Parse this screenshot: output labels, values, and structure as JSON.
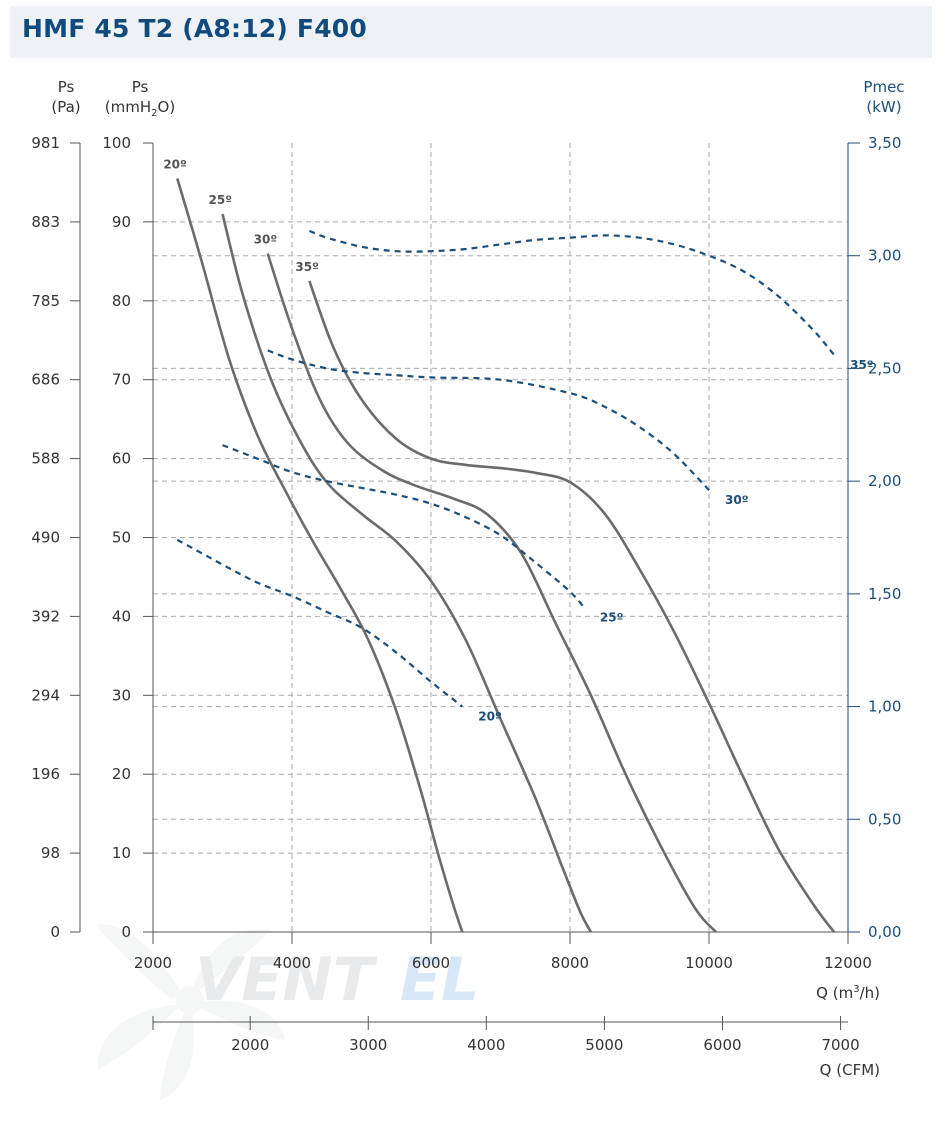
{
  "title": "HMF 45 T2 (A8:12) F400",
  "colors": {
    "pressure_curve": "#6b6b6b",
    "power_curve": "#1c4e7a",
    "grid": "#aaaaaa",
    "title": "#114a7d",
    "title_bg": "#eef2f6"
  },
  "watermark": {
    "text_part1": "VENT",
    "text_part2": "EL",
    "icon": "fan-blade-icon"
  },
  "axes": {
    "left_pa": {
      "label_line1": "Ps",
      "label_line2": "(Pa)",
      "ticks": [
        "981",
        "883",
        "785",
        "686",
        "588",
        "490",
        "392",
        "294",
        "196",
        "98",
        "0"
      ]
    },
    "left_mmh2o": {
      "label_line1": "Ps",
      "label_pre": "(mmH",
      "label_sub": "2",
      "label_post": "O)",
      "ticks": [
        "100",
        "90",
        "80",
        "70",
        "60",
        "50",
        "40",
        "30",
        "20",
        "10",
        "0"
      ]
    },
    "right_kw": {
      "label_line1": "Pmec",
      "label_line2": "(kW)",
      "ticks": [
        "3,50",
        "3,00",
        "2,50",
        "2,00",
        "1,50",
        "1,00",
        "0,50",
        "0,00"
      ]
    },
    "bottom_m3h": {
      "label_pre": "Q (m",
      "label_sup": "3",
      "label_post": "/h)",
      "ticks": [
        "2000",
        "4000",
        "6000",
        "8000",
        "10000",
        "12000"
      ]
    },
    "bottom_cfm": {
      "label": "Q (CFM)",
      "ticks": [
        "2000",
        "3000",
        "4000",
        "5000",
        "6000",
        "7000"
      ]
    }
  },
  "chart_data": {
    "type": "line",
    "title": "HMF 45 T2 (A8:12) F400",
    "xlabel": "Q (m3/h)",
    "xlabel_secondary": "Q (CFM)",
    "ylabel": "Ps (mmH2O)",
    "ylabel_secondary": "Ps (Pa)",
    "y2label": "Pmec (kW)",
    "xlim": [
      2000,
      12000
    ],
    "ylim": [
      0,
      100
    ],
    "y2lim": [
      0,
      3.5
    ],
    "grid": true,
    "series": [
      {
        "name": "20º",
        "kind": "pressure",
        "label": "20º",
        "x": [
          2350,
          2700,
          3100,
          3500,
          3900,
          4300,
          4700,
          5100,
          5500,
          5850,
          6100,
          6300,
          6450
        ],
        "y": [
          95.5,
          85,
          72.5,
          63,
          56,
          49.5,
          43.5,
          37,
          28,
          18,
          10,
          4,
          0
        ]
      },
      {
        "name": "25º",
        "kind": "pressure",
        "label": "25º",
        "x": [
          3000,
          3300,
          3700,
          4100,
          4500,
          5000,
          5500,
          6000,
          6500,
          7000,
          7500,
          7900,
          8150,
          8300
        ],
        "y": [
          91,
          80.5,
          70,
          62.5,
          57,
          53,
          49.5,
          44.5,
          37,
          27,
          17,
          8,
          2.5,
          0
        ]
      },
      {
        "name": "30º",
        "kind": "pressure",
        "label": "30º",
        "x": [
          3650,
          4000,
          4400,
          4800,
          5300,
          5800,
          6300,
          6800,
          7300,
          7800,
          8300,
          8800,
          9300,
          9800,
          10100
        ],
        "y": [
          86,
          76.5,
          67.5,
          62,
          58.5,
          56.5,
          55,
          53,
          48,
          39,
          30,
          20,
          11,
          3,
          0
        ]
      },
      {
        "name": "35º",
        "kind": "pressure",
        "label": "35º",
        "x": [
          4250,
          4600,
          5000,
          5500,
          6000,
          6500,
          7000,
          7500,
          8000,
          8500,
          9000,
          9500,
          10000,
          10500,
          11000,
          11500,
          11800
        ],
        "y": [
          82.5,
          74,
          67.5,
          62.5,
          60,
          59.2,
          58.8,
          58.2,
          57,
          53,
          46,
          38,
          29,
          19.5,
          10.5,
          3.5,
          0
        ]
      },
      {
        "name": "20º",
        "kind": "power",
        "label": "20º",
        "x": [
          2350,
          3000,
          3500,
          4000,
          4500,
          5000,
          5500,
          6000,
          6450
        ],
        "y": [
          1.74,
          1.63,
          1.55,
          1.49,
          1.42,
          1.35,
          1.24,
          1.11,
          1.0
        ]
      },
      {
        "name": "25º",
        "kind": "power",
        "label": "25º",
        "x": [
          3000,
          3500,
          4000,
          4500,
          5000,
          5500,
          6000,
          6500,
          7000,
          7500,
          8000,
          8200
        ],
        "y": [
          2.16,
          2.1,
          2.04,
          2.0,
          1.97,
          1.94,
          1.9,
          1.84,
          1.76,
          1.64,
          1.51,
          1.44
        ]
      },
      {
        "name": "30º",
        "kind": "power",
        "label": "30º",
        "x": [
          3650,
          4000,
          4500,
          5000,
          5500,
          6000,
          7000,
          8000,
          8500,
          9000,
          9500,
          10000
        ],
        "y": [
          2.58,
          2.54,
          2.5,
          2.48,
          2.47,
          2.46,
          2.45,
          2.39,
          2.33,
          2.24,
          2.12,
          1.96
        ]
      },
      {
        "name": "35º",
        "kind": "power",
        "label": "35º",
        "x": [
          4250,
          4500,
          5000,
          5500,
          6000,
          6500,
          7000,
          7500,
          8000,
          8500,
          9000,
          9500,
          10000,
          10500,
          11000,
          11500,
          11800
        ],
        "y": [
          3.11,
          3.08,
          3.04,
          3.02,
          3.02,
          3.03,
          3.05,
          3.07,
          3.08,
          3.09,
          3.08,
          3.05,
          3.0,
          2.93,
          2.82,
          2.67,
          2.56
        ]
      }
    ]
  }
}
